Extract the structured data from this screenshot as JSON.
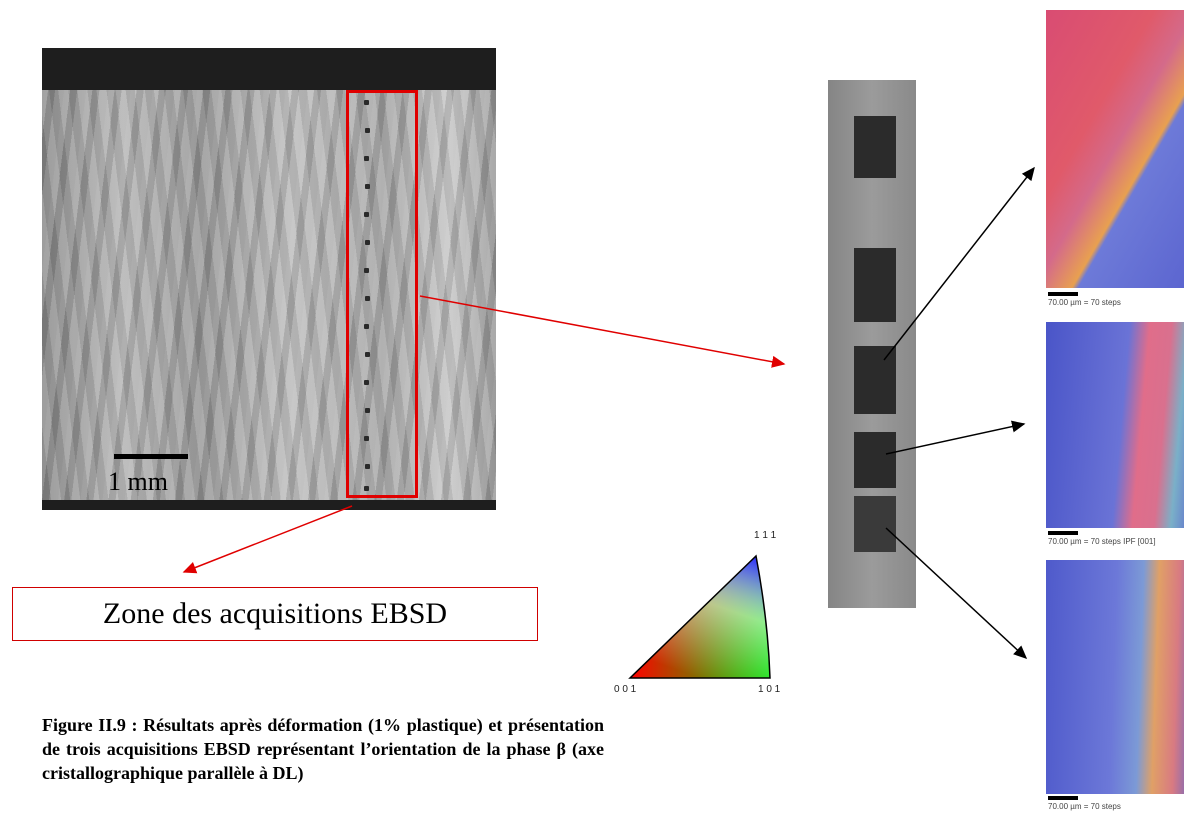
{
  "micrograph": {
    "scale_label": "1 mm"
  },
  "zone_label": "Zone des acquisitions EBSD",
  "color_key": {
    "top_label": "1 1 1",
    "left_label": "0 0 1",
    "right_label": "1 0 1"
  },
  "maps": [
    {
      "caption": "70.00 µm = 70 steps"
    },
    {
      "caption": "70.00 µm = 70 steps   IPF [001]"
    },
    {
      "caption": "70.00 µm = 70 steps"
    }
  ],
  "caption": "Figure II.9 : Résultats après déformation (1% plastique) et présentation de trois acquisitions EBSD représentant l’orientation de la phase β (axe cristallographique parallèle à DL)",
  "colors": {
    "highlight": "#e00000",
    "arrow_black": "#000000"
  }
}
